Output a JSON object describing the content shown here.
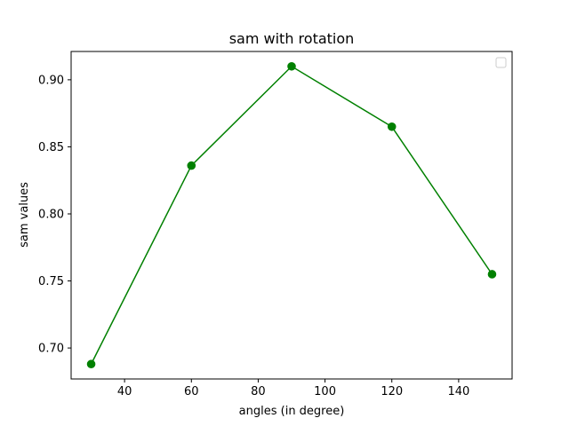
{
  "chart_data": {
    "type": "line",
    "title": "sam with rotation",
    "xlabel": "angles (in degree)",
    "ylabel": "sam values",
    "x": [
      30,
      60,
      90,
      120,
      150
    ],
    "series": [
      {
        "values": [
          0.688,
          0.836,
          0.91,
          0.865,
          0.755
        ],
        "color": "#008000",
        "marker": "circle"
      }
    ],
    "xlim": [
      24,
      156
    ],
    "ylim": [
      0.6769,
      0.9211
    ],
    "xticks": [
      40,
      60,
      80,
      100,
      120,
      140
    ],
    "yticks": [
      0.7,
      0.75,
      0.8,
      0.85,
      0.9
    ],
    "xtick_labels": [
      "40",
      "60",
      "80",
      "100",
      "120",
      "140"
    ],
    "ytick_labels": [
      "0.70",
      "0.75",
      "0.80",
      "0.85",
      "0.90"
    ],
    "grid": false,
    "legend": {
      "placement": "top-right",
      "entries": []
    }
  }
}
